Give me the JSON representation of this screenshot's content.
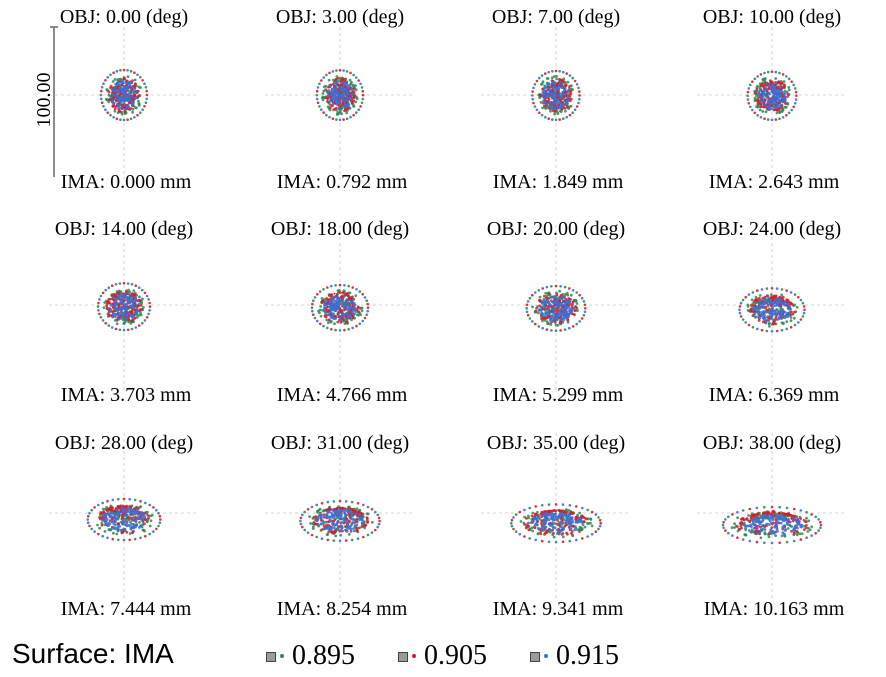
{
  "chart_data": {
    "type": "scatter",
    "plot_kind": "spot diagram",
    "scale_label": "100.00",
    "fields": [
      {
        "obj": "OBJ: 0.00 (deg)",
        "ima": "IMA: 0.000 mm",
        "angle": 0,
        "image_height_mm": 0.0
      },
      {
        "obj": "OBJ: 3.00 (deg)",
        "ima": "IMA: 0.792 mm",
        "angle": 3,
        "image_height_mm": 0.792
      },
      {
        "obj": "OBJ: 7.00 (deg)",
        "ima": "IMA: 1.849 mm",
        "angle": 7,
        "image_height_mm": 1.849
      },
      {
        "obj": "OBJ: 10.00 (deg)",
        "ima": "IMA: 2.643 mm",
        "angle": 10,
        "image_height_mm": 2.643
      },
      {
        "obj": "OBJ: 14.00 (deg)",
        "ima": "IMA: 3.703 mm",
        "angle": 14,
        "image_height_mm": 3.703
      },
      {
        "obj": "OBJ: 18.00 (deg)",
        "ima": "IMA: 4.766 mm",
        "angle": 18,
        "image_height_mm": 4.766
      },
      {
        "obj": "OBJ: 20.00 (deg)",
        "ima": "IMA: 5.299 mm",
        "angle": 20,
        "image_height_mm": 5.299
      },
      {
        "obj": "OBJ: 24.00 (deg)",
        "ima": "IMA: 6.369 mm",
        "angle": 24,
        "image_height_mm": 6.369
      },
      {
        "obj": "OBJ: 28.00 (deg)",
        "ima": "IMA: 7.444 mm",
        "angle": 28,
        "image_height_mm": 7.444
      },
      {
        "obj": "OBJ: 31.00 (deg)",
        "ima": "IMA: 8.254 mm",
        "angle": 31,
        "image_height_mm": 8.254
      },
      {
        "obj": "OBJ: 35.00 (deg)",
        "ima": "IMA: 9.341 mm",
        "angle": 35,
        "image_height_mm": 9.341
      },
      {
        "obj": "OBJ: 38.00 (deg)",
        "ima": "IMA: 10.163 mm",
        "angle": 38,
        "image_height_mm": 10.163
      }
    ],
    "series": [
      {
        "name": "0.895",
        "color": "#2e8b57"
      },
      {
        "name": "0.905",
        "color": "#d61f2a"
      },
      {
        "name": "0.915",
        "color": "#3b6fd6"
      }
    ],
    "grid": true,
    "legend_position": "bottom"
  },
  "footer": {
    "surface_label": "Surface: IMA"
  }
}
